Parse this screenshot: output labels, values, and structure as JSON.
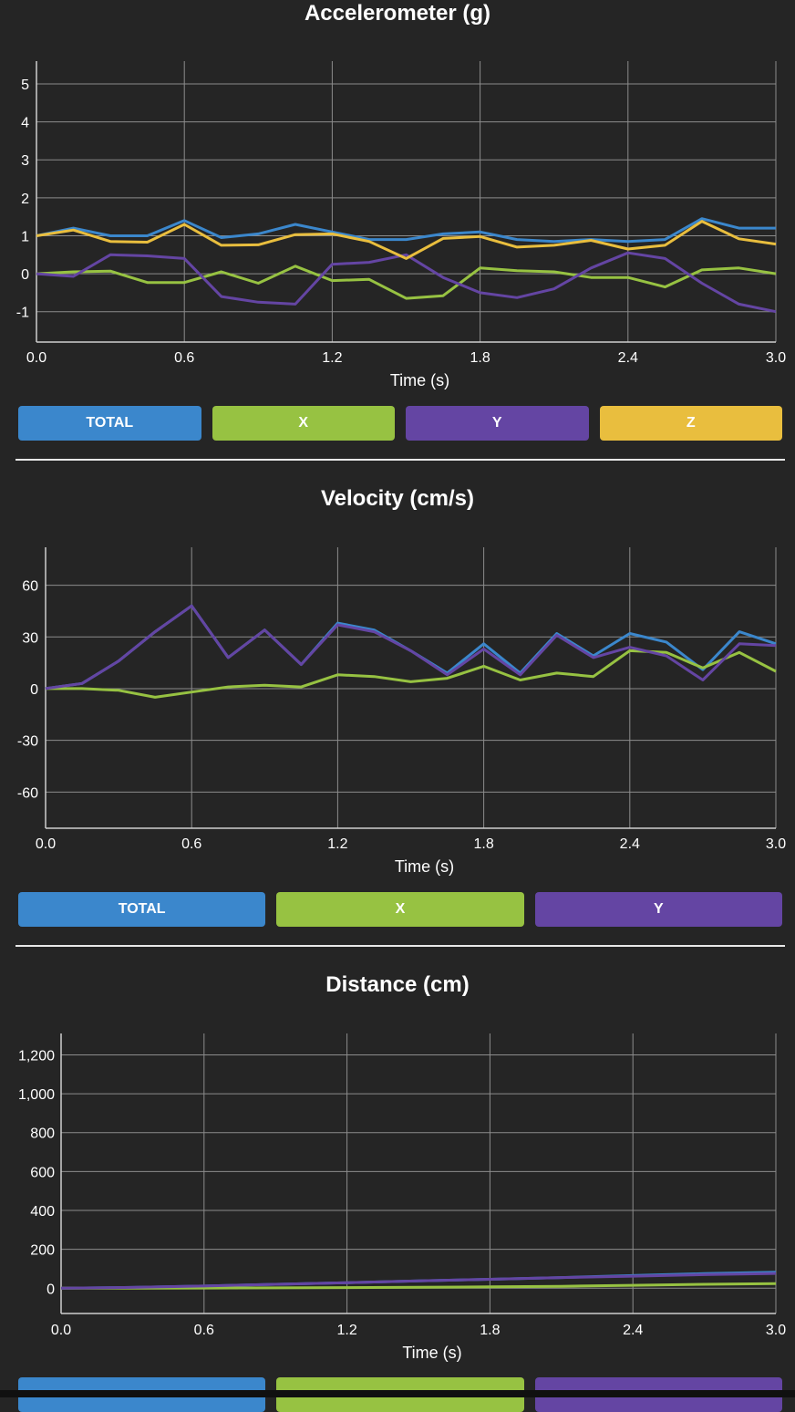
{
  "colors": {
    "total": "#3b87cc",
    "x": "#97c242",
    "y": "#6445a3",
    "z": "#e9be3e",
    "grid": "#8c8c8c",
    "axis": "#cfcfcf"
  },
  "chart_data": [
    {
      "type": "line",
      "title": "Accelerometer (g)",
      "xlabel": "Time (s)",
      "ylabel": "",
      "xlim": [
        0,
        3
      ],
      "ylim": [
        -1.8,
        5.6
      ],
      "xticks": [
        0,
        0.6,
        1.2,
        1.8,
        2.4,
        3.0
      ],
      "xtick_labels": [
        "0.0",
        "0.6",
        "1.2",
        "1.8",
        "2.4",
        "3.0"
      ],
      "yticks": [
        5,
        4,
        3,
        2,
        1,
        0,
        -1
      ],
      "ytick_labels": [
        "5",
        "4",
        "3",
        "2",
        "1",
        "0",
        "-1"
      ],
      "grid": true,
      "x": [
        0,
        0.15,
        0.3,
        0.45,
        0.6,
        0.75,
        0.9,
        1.05,
        1.2,
        1.35,
        1.5,
        1.65,
        1.8,
        1.95,
        2.1,
        2.25,
        2.4,
        2.55,
        2.7,
        2.85,
        3.0
      ],
      "series": [
        {
          "name": "TOTAL",
          "color_key": "total",
          "values": [
            1.0,
            1.2,
            1.0,
            1.0,
            1.4,
            0.95,
            1.05,
            1.3,
            1.1,
            0.9,
            0.9,
            1.05,
            1.1,
            0.9,
            0.85,
            0.9,
            0.85,
            0.9,
            1.45,
            1.2,
            1.2
          ]
        },
        {
          "name": "X",
          "color_key": "x",
          "values": [
            0.0,
            0.05,
            0.07,
            -0.23,
            -0.23,
            0.05,
            -0.25,
            0.2,
            -0.18,
            -0.15,
            -0.65,
            -0.58,
            0.15,
            0.08,
            0.05,
            -0.1,
            -0.1,
            -0.35,
            0.1,
            0.15,
            0.0
          ]
        },
        {
          "name": "Y",
          "color_key": "y",
          "values": [
            0.0,
            -0.07,
            0.5,
            0.47,
            0.4,
            -0.6,
            -0.75,
            -0.8,
            0.25,
            0.3,
            0.5,
            -0.1,
            -0.5,
            -0.63,
            -0.4,
            0.15,
            0.55,
            0.4,
            -0.25,
            -0.8,
            -1.0
          ]
        },
        {
          "name": "Z",
          "color_key": "z",
          "values": [
            1.0,
            1.15,
            0.85,
            0.83,
            1.3,
            0.75,
            0.76,
            1.03,
            1.05,
            0.85,
            0.4,
            0.93,
            0.98,
            0.7,
            0.75,
            0.88,
            0.65,
            0.75,
            1.38,
            0.92,
            0.78
          ]
        }
      ],
      "buttons": [
        "TOTAL",
        "X",
        "Y",
        "Z"
      ]
    },
    {
      "type": "line",
      "title": "Velocity (cm/s)",
      "xlabel": "Time (s)",
      "ylabel": "",
      "xlim": [
        0,
        3
      ],
      "ylim": [
        -81,
        82
      ],
      "xticks": [
        0,
        0.6,
        1.2,
        1.8,
        2.4,
        3.0
      ],
      "xtick_labels": [
        "0.0",
        "0.6",
        "1.2",
        "1.8",
        "2.4",
        "3.0"
      ],
      "yticks": [
        60,
        30,
        0,
        -30,
        -60
      ],
      "ytick_labels": [
        "60",
        "30",
        "0",
        "-30",
        "-60"
      ],
      "grid": true,
      "x": [
        0,
        0.15,
        0.3,
        0.45,
        0.6,
        0.75,
        0.9,
        1.05,
        1.2,
        1.35,
        1.5,
        1.65,
        1.8,
        1.95,
        2.1,
        2.25,
        2.4,
        2.55,
        2.7,
        2.85,
        3.0
      ],
      "series": [
        {
          "name": "TOTAL",
          "color_key": "total",
          "values": [
            0,
            3,
            16,
            33,
            48,
            18,
            34,
            14,
            38,
            34,
            22,
            9,
            26,
            9,
            32,
            19,
            32,
            27,
            11,
            33,
            26
          ]
        },
        {
          "name": "X",
          "color_key": "x",
          "values": [
            0,
            0,
            -1,
            -5,
            -2,
            1,
            2,
            1,
            8,
            7,
            4,
            6,
            13,
            5,
            9,
            7,
            22,
            21,
            12,
            21,
            10
          ]
        },
        {
          "name": "Y",
          "color_key": "y",
          "values": [
            0,
            3,
            16,
            33,
            48,
            18,
            34,
            14,
            37,
            33,
            22,
            8,
            23,
            8,
            31,
            18,
            24,
            19,
            5,
            26,
            25
          ]
        }
      ],
      "buttons": [
        "TOTAL",
        "X",
        "Y"
      ]
    },
    {
      "type": "line",
      "title": "Distance (cm)",
      "xlabel": "Time (s)",
      "ylabel": "",
      "xlim": [
        0,
        3
      ],
      "ylim": [
        -130,
        1310
      ],
      "xticks": [
        0,
        0.6,
        1.2,
        1.8,
        2.4,
        3.0
      ],
      "xtick_labels": [
        "0.0",
        "0.6",
        "1.2",
        "1.8",
        "2.4",
        "3.0"
      ],
      "yticks": [
        1200,
        1000,
        800,
        600,
        400,
        200,
        0
      ],
      "ytick_labels": [
        "1,200",
        "1,000",
        "800",
        "600",
        "400",
        "200",
        "0"
      ],
      "grid": true,
      "x": [
        0,
        0.3,
        0.6,
        0.9,
        1.2,
        1.5,
        1.8,
        2.1,
        2.4,
        2.7,
        3.0
      ],
      "series": [
        {
          "name": "TOTAL",
          "color_key": "total",
          "values": [
            0,
            4,
            11,
            20,
            28,
            38,
            46,
            55,
            65,
            75,
            82
          ]
        },
        {
          "name": "X",
          "color_key": "x",
          "values": [
            0,
            0,
            1,
            2,
            3,
            5,
            7,
            10,
            15,
            20,
            24
          ]
        },
        {
          "name": "Y",
          "color_key": "y",
          "values": [
            0,
            4,
            11,
            20,
            28,
            38,
            46,
            55,
            62,
            70,
            76
          ]
        }
      ],
      "buttons": []
    }
  ]
}
